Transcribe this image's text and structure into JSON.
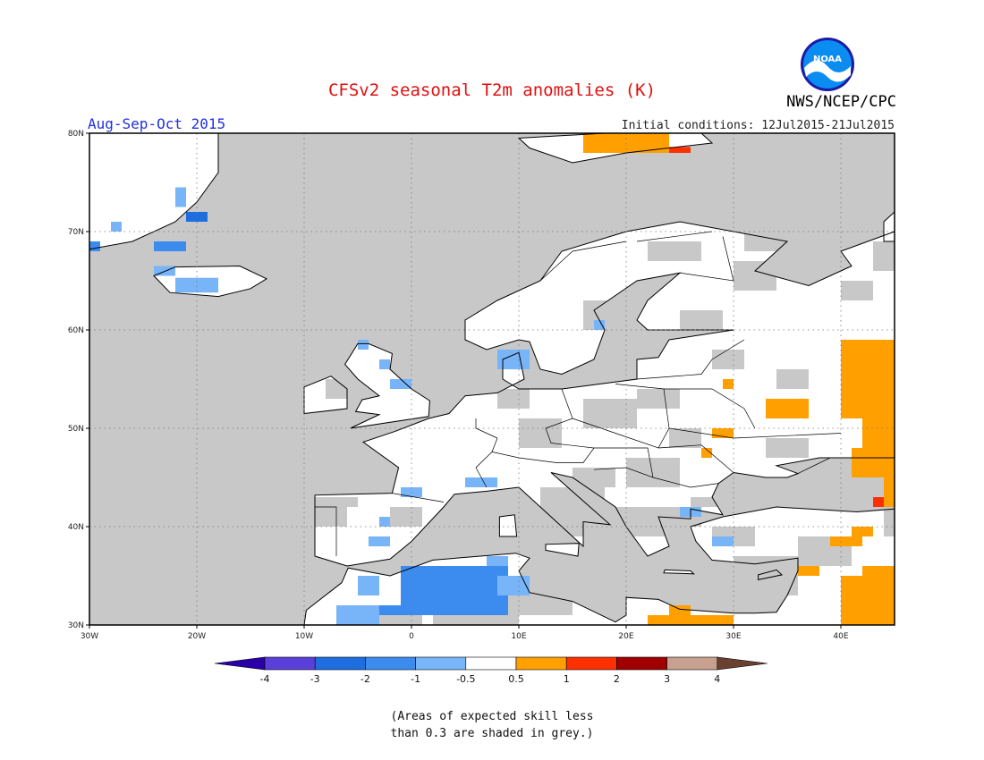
{
  "title": "CFSv2 seasonal T2m anomalies (K)",
  "agency": "NWS/NCEP/CPC",
  "logo_text": "NOAA",
  "season": "Aug-Sep-Oct 2015",
  "initial_conditions": "Initial conditions: 12Jul2015-21Jul2015",
  "note_line1": "(Areas of expected skill less",
  "note_line2": "than 0.3 are shaded in grey.)",
  "map": {
    "lon_range": [
      -30,
      45
    ],
    "lat_range": [
      30,
      80
    ],
    "lon_ticks": [
      "30W",
      "20W",
      "10W",
      "0",
      "10E",
      "20E",
      "30E",
      "40E"
    ],
    "lat_ticks": [
      "30N",
      "40N",
      "50N",
      "60N",
      "70N",
      "80N"
    ],
    "low_skill_color": "#c8c8c8",
    "ocean_color": "#c8c8c8",
    "land_color": "#ffffff"
  },
  "colorbar": {
    "labels": [
      "-4",
      "-3",
      "-2",
      "-1",
      "-0.5",
      "0.5",
      "1",
      "2",
      "3",
      "4"
    ],
    "colors": [
      "#2a00a8",
      "#5a40d8",
      "#1e6ee0",
      "#3c8cf0",
      "#78b4f8",
      "#ffffff",
      "#ffa000",
      "#ff3000",
      "#a00000",
      "#c8a090",
      "#6a4030"
    ]
  }
}
